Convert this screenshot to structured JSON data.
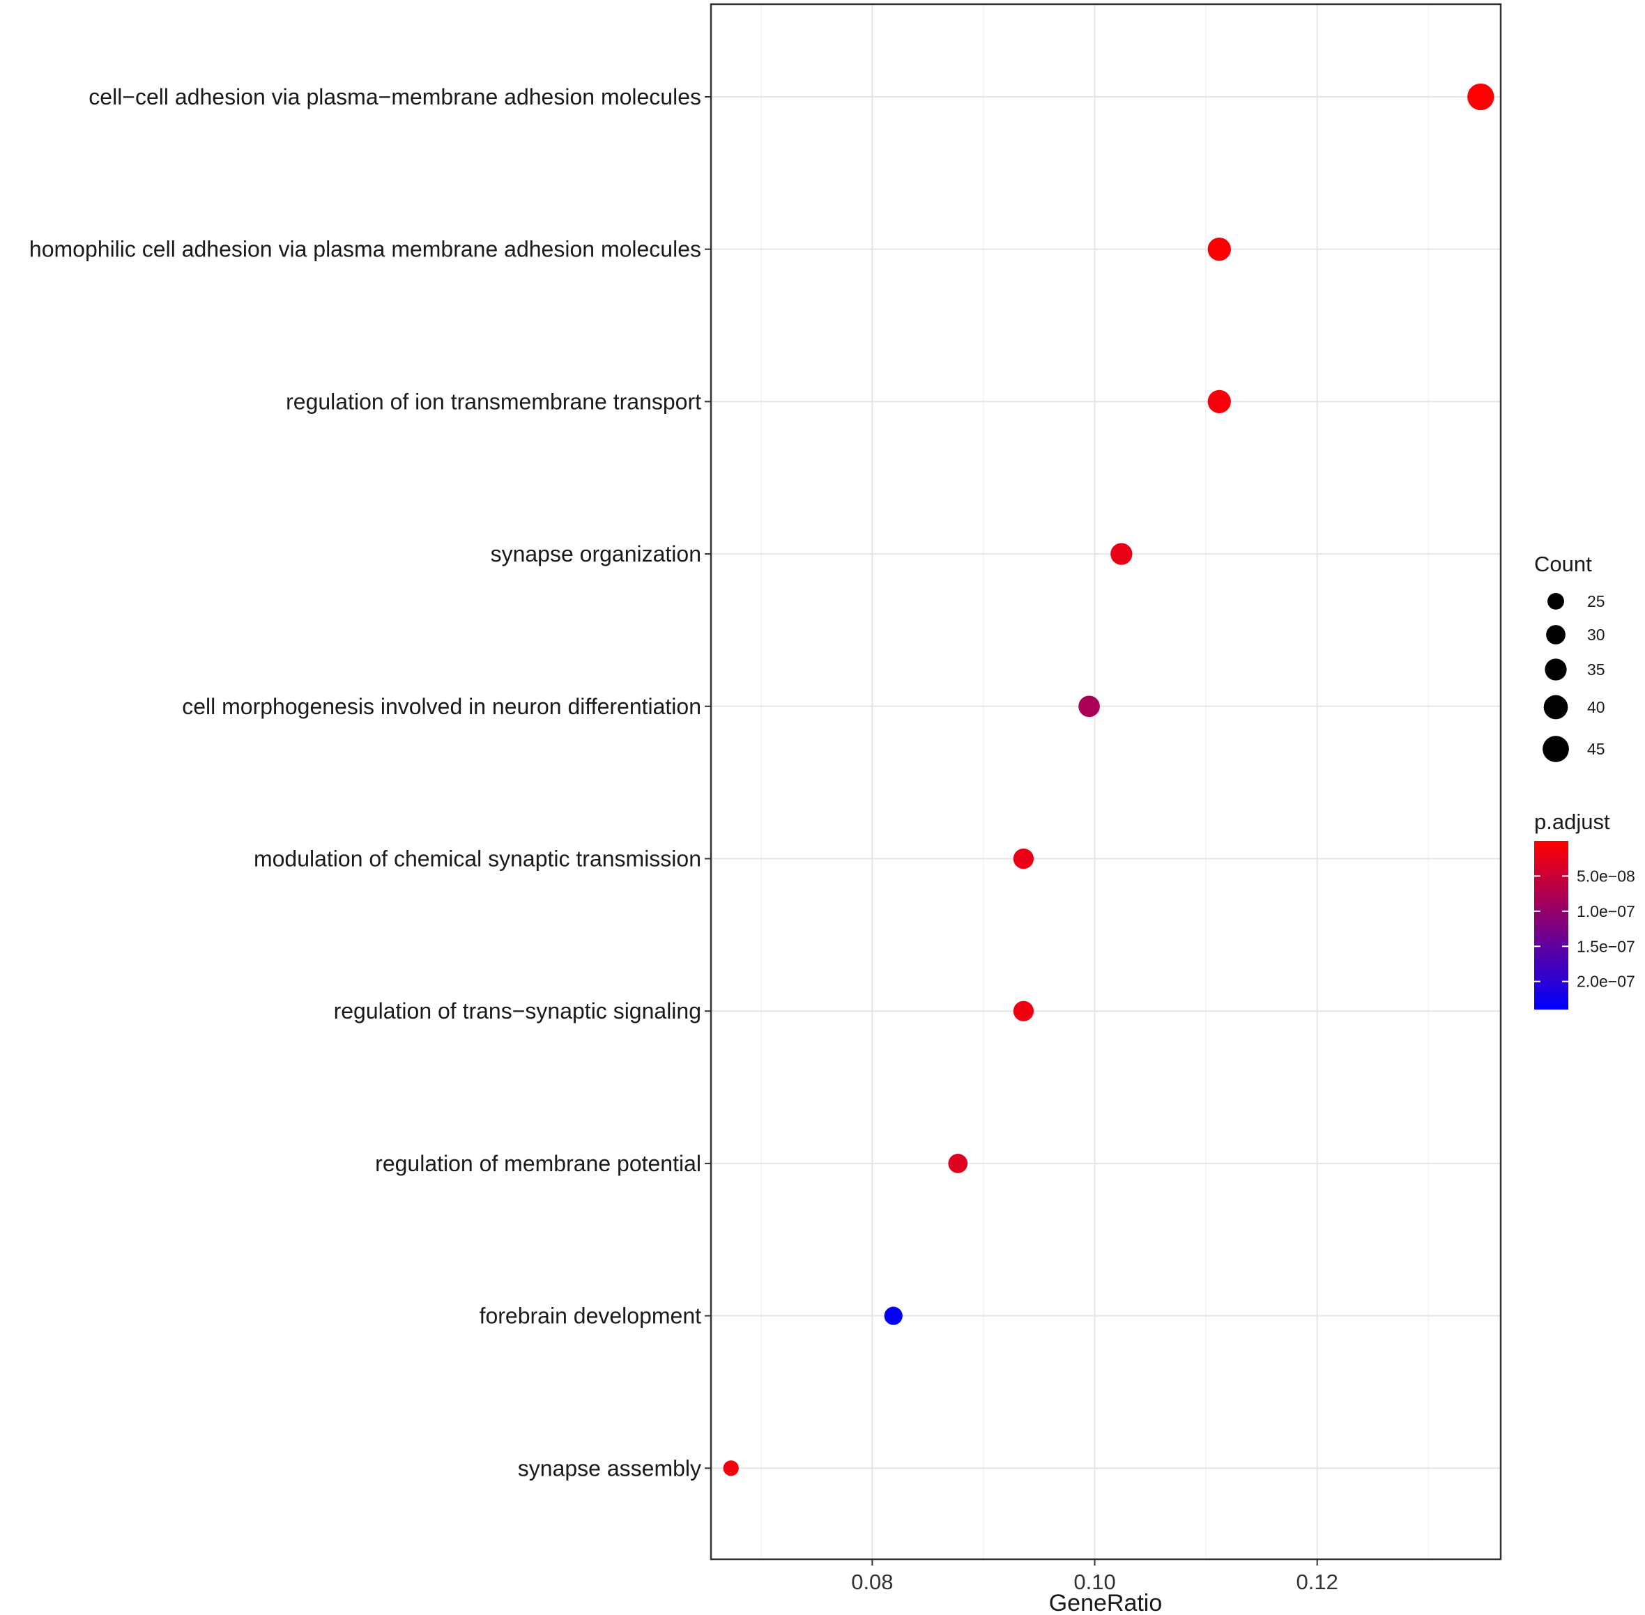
{
  "chart_data": {
    "type": "scatter",
    "xlabel": "GeneRatio",
    "xlim": [
      0.0655,
      0.1365
    ],
    "x_ticks": [
      0.08,
      0.1,
      0.12
    ],
    "x_tick_labels": [
      "0.08",
      "0.10",
      "0.12"
    ],
    "grid": true,
    "categories": [
      "cell−cell adhesion via plasma−membrane adhesion molecules",
      "homophilic cell adhesion via plasma membrane adhesion molecules",
      "regulation of ion transmembrane transport",
      "synapse organization",
      "cell morphogenesis involved in neuron differentiation",
      "modulation of chemical synaptic transmission",
      "regulation of trans−synaptic signaling",
      "regulation of membrane potential",
      "forebrain development",
      "synapse assembly"
    ],
    "points": [
      {
        "category": "cell−cell adhesion via plasma−membrane adhesion molecules",
        "gene_ratio": 0.1347,
        "count": 46,
        "p_adjust": 1e-09
      },
      {
        "category": "homophilic cell adhesion via plasma membrane adhesion molecules",
        "gene_ratio": 0.1112,
        "count": 38,
        "p_adjust": 5e-09
      },
      {
        "category": "regulation of ion transmembrane transport",
        "gene_ratio": 0.1112,
        "count": 38,
        "p_adjust": 8e-09
      },
      {
        "category": "synapse organization",
        "gene_ratio": 0.1024,
        "count": 35,
        "p_adjust": 2e-08
      },
      {
        "category": "cell morphogenesis involved in neuron differentiation",
        "gene_ratio": 0.0995,
        "count": 34,
        "p_adjust": 8e-08
      },
      {
        "category": "modulation of chemical synaptic transmission",
        "gene_ratio": 0.0936,
        "count": 32,
        "p_adjust": 2e-08
      },
      {
        "category": "regulation of trans−synaptic signaling",
        "gene_ratio": 0.0936,
        "count": 32,
        "p_adjust": 1.5e-08
      },
      {
        "category": "regulation of membrane potential",
        "gene_ratio": 0.0877,
        "count": 30,
        "p_adjust": 3e-08
      },
      {
        "category": "forebrain development",
        "gene_ratio": 0.0819,
        "count": 28,
        "p_adjust": 2.35e-07
      },
      {
        "category": "synapse assembly",
        "gene_ratio": 0.0673,
        "count": 23,
        "p_adjust": 1e-08
      }
    ],
    "size_legend": {
      "title": "Count",
      "breaks": [
        25,
        30,
        35,
        40,
        45
      ],
      "labels": [
        "25",
        "30",
        "35",
        "40",
        "45"
      ],
      "color": "#000000"
    },
    "color_legend": {
      "title": "p.adjust",
      "range": [
        0.0,
        2.4e-07
      ],
      "breaks": [
        5e-08,
        1e-07,
        1.5e-07,
        2e-07
      ],
      "labels": [
        "5.0e−08",
        "1.0e−07",
        "1.5e−07",
        "2.0e−07"
      ],
      "low_color": "#ff0000",
      "high_color": "#0000ff"
    }
  }
}
